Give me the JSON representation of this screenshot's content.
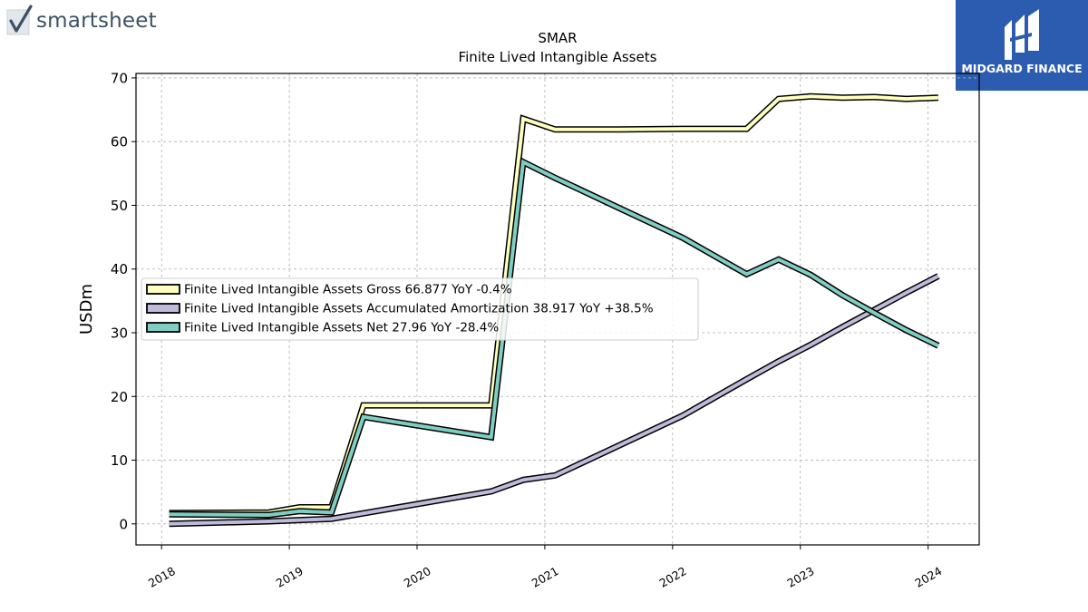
{
  "branding": {
    "left_logo_text": "smartsheet",
    "right_logo_text": "MIDGARD FINANCE"
  },
  "chart_data": {
    "type": "line",
    "title": "SMAR",
    "subtitle": "Finite Lived Intangible Assets",
    "ylabel": "USDm",
    "xlabel": "",
    "ylim": [
      -3.3,
      70.7
    ],
    "yticks": [
      0,
      10,
      20,
      30,
      40,
      50,
      60,
      70
    ],
    "xlim": [
      2017.8,
      2024.4
    ],
    "xticks": [
      "2018",
      "2019",
      "2020",
      "2021",
      "2022",
      "2023",
      "2024"
    ],
    "grid": true,
    "legend_position": "center-left",
    "series": [
      {
        "name": "Finite Lived Intangible Assets Gross",
        "legend_label": "Finite Lived Intangible Assets Gross  66.877 YoY -0.4%",
        "color": "#ffffbf",
        "x": [
          2018.06,
          2018.84,
          2019.08,
          2019.33,
          2019.58,
          2020.58,
          2020.83,
          2021.08,
          2021.58,
          2022.08,
          2022.58,
          2022.83,
          2023.08,
          2023.33,
          2023.58,
          2023.83,
          2024.08
        ],
        "y": [
          1.7,
          1.8,
          2.6,
          2.6,
          18.6,
          18.6,
          63.6,
          61.9,
          61.9,
          62.0,
          62.0,
          66.7,
          67.1,
          66.9,
          67.0,
          66.7,
          66.9
        ]
      },
      {
        "name": "Finite Lived Intangible Assets Accumulated Amortization",
        "legend_label": "Finite Lived Intangible Assets Accumulated Amortization  38.917 YoY +38.5%",
        "color": "#bebada",
        "x": [
          2018.06,
          2018.84,
          2019.08,
          2019.33,
          2020.58,
          2020.83,
          2021.08,
          2022.08,
          2022.58,
          2022.83,
          2023.08,
          2023.33,
          2023.58,
          2023.83,
          2024.08
        ],
        "y": [
          0.0,
          0.4,
          0.6,
          0.8,
          5.1,
          6.9,
          7.6,
          17.0,
          22.7,
          25.5,
          28.1,
          30.9,
          33.6,
          36.3,
          38.9
        ]
      },
      {
        "name": "Finite Lived Intangible Assets Net",
        "legend_label": "Finite Lived Intangible Assets Net  27.96 YoY -28.4%",
        "color": "#80cdc1",
        "x": [
          2018.06,
          2018.84,
          2019.08,
          2019.33,
          2019.58,
          2020.58,
          2020.83,
          2021.08,
          2021.58,
          2022.08,
          2022.58,
          2022.83,
          2023.08,
          2023.33,
          2023.58,
          2023.83,
          2024.08
        ],
        "y": [
          1.5,
          1.4,
          2.0,
          1.8,
          16.8,
          13.6,
          56.8,
          54.3,
          49.6,
          44.9,
          39.2,
          41.5,
          39.1,
          35.9,
          33.1,
          30.4,
          27.96
        ]
      }
    ]
  }
}
